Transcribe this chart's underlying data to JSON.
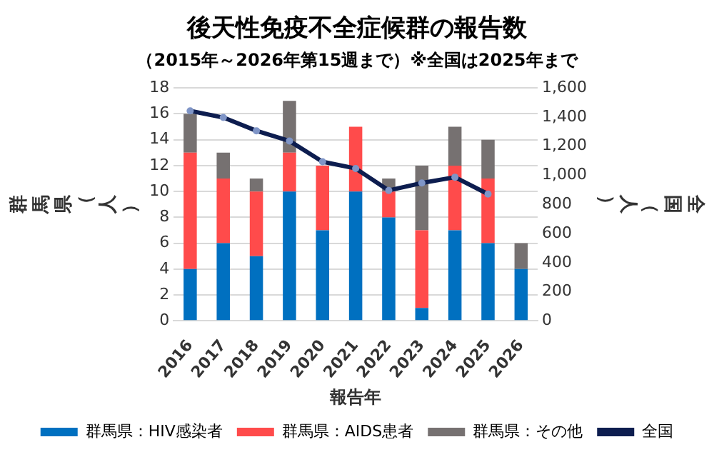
{
  "chart_data": {
    "type": "bar",
    "title": "後天性免疫不全症候群の報告数",
    "subtitle": "（2015年～2026年第15週まで）※全国は2025年まで",
    "xlabel": "報告年",
    "ylabel": "群馬県（人）",
    "y2label": "全国（人）",
    "categories": [
      "2016",
      "2017",
      "2018",
      "2019",
      "2020",
      "2021",
      "2022",
      "2023",
      "2024",
      "2025",
      "2026"
    ],
    "stacked": true,
    "series": [
      {
        "name": "群馬県：HIV感染者",
        "color": "#0070c0",
        "values": [
          4,
          6,
          5,
          10,
          7,
          10,
          8,
          1,
          7,
          6,
          4
        ]
      },
      {
        "name": "群馬県：AIDS患者",
        "color": "#ff4b4b",
        "values": [
          9,
          5,
          5,
          3,
          5,
          5,
          2,
          6,
          5,
          5,
          0
        ]
      },
      {
        "name": "群馬県：その他",
        "color": "#767171",
        "values": [
          3,
          2,
          1,
          4,
          0,
          0,
          1,
          5,
          3,
          3,
          2
        ]
      },
      {
        "name": "全国",
        "type": "line",
        "axis": "y2",
        "color": "#0d1d4f",
        "marker": "circle",
        "values": [
          1443,
          1397,
          1306,
          1236,
          1093,
          1047,
          896,
          947,
          987,
          871,
          null
        ]
      }
    ],
    "ylim": [
      0,
      18
    ],
    "yticks": [
      0,
      2,
      4,
      6,
      8,
      10,
      12,
      14,
      16,
      18
    ],
    "y2lim": [
      0,
      1600
    ],
    "y2ticks": [
      {
        "value": 0,
        "label": "0"
      },
      {
        "value": 200,
        "label": "200"
      },
      {
        "value": 400,
        "label": "400"
      },
      {
        "value": 600,
        "label": "600"
      },
      {
        "value": 800,
        "label": "800"
      },
      {
        "value": 1000,
        "label": "1,000"
      },
      {
        "value": 1200,
        "label": "1,200"
      },
      {
        "value": 1400,
        "label": "1,400"
      },
      {
        "value": 1600,
        "label": "1,600"
      }
    ],
    "grid": "y",
    "legend": "bottom"
  }
}
